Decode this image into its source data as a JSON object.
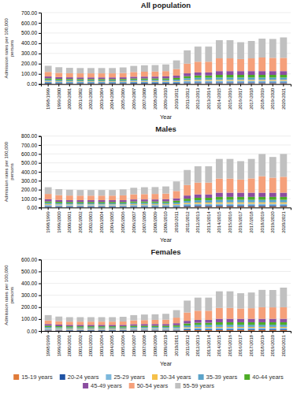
{
  "chart_data": [
    {
      "type": "bar",
      "stacked": true,
      "title": "All population",
      "xlabel": "Year",
      "ylabel": "Admission rates per 100,000\npersons",
      "grid": true,
      "legend": "bottom",
      "categories": [
        "1998/1999",
        "1999/2000",
        "2000/2001",
        "2001/2002",
        "2002/2003",
        "2003/2004",
        "2004/2005",
        "2005/2006",
        "2006/2007",
        "2007/2008",
        "2008/2009",
        "2009/2010",
        "2010/2011",
        "2011/2012",
        "2012/2013",
        "2013/2014",
        "2014/2015",
        "2015/2016",
        "2016/2017",
        "2017/2018",
        "2018/2019",
        "2019/2020",
        "2020/2021"
      ],
      "series": [
        {
          "name": "15-19 years",
          "color": "#E07B39",
          "values": [
            5,
            5,
            5,
            5,
            5,
            5,
            5,
            5,
            5,
            5,
            5,
            5,
            5,
            7,
            8,
            8,
            8,
            8,
            8,
            8,
            8,
            8,
            8
          ]
        },
        {
          "name": "20-24 years",
          "color": "#2053A4",
          "values": [
            8,
            7,
            7,
            7,
            7,
            7,
            7,
            7,
            8,
            8,
            8,
            8,
            8,
            10,
            10,
            10,
            10,
            10,
            10,
            10,
            10,
            10,
            10
          ]
        },
        {
          "name": "25-29 years",
          "color": "#7CB8DC",
          "values": [
            10,
            9,
            9,
            9,
            9,
            9,
            9,
            9,
            10,
            10,
            10,
            10,
            10,
            13,
            14,
            14,
            14,
            14,
            14,
            14,
            14,
            14,
            14
          ]
        },
        {
          "name": "30-34 years",
          "color": "#F5C04A",
          "values": [
            7,
            6,
            6,
            6,
            6,
            6,
            6,
            6,
            7,
            7,
            7,
            7,
            7,
            9,
            10,
            10,
            10,
            10,
            10,
            10,
            10,
            10,
            10
          ]
        },
        {
          "name": "35-39 years",
          "color": "#5BA3C9",
          "values": [
            12,
            11,
            11,
            10,
            10,
            10,
            10,
            11,
            12,
            12,
            12,
            12,
            14,
            18,
            20,
            20,
            22,
            22,
            22,
            22,
            22,
            22,
            22
          ]
        },
        {
          "name": "40-44 years",
          "color": "#4DAC26",
          "values": [
            14,
            13,
            12,
            12,
            12,
            12,
            12,
            12,
            13,
            13,
            13,
            14,
            16,
            20,
            22,
            22,
            26,
            26,
            26,
            26,
            26,
            26,
            26
          ]
        },
        {
          "name": "45-49 years",
          "color": "#8B4DA0",
          "values": [
            18,
            17,
            16,
            16,
            16,
            16,
            16,
            16,
            17,
            18,
            18,
            19,
            22,
            28,
            30,
            30,
            37,
            37,
            37,
            37,
            37,
            37,
            37
          ]
        },
        {
          "name": "50-54 years",
          "color": "#F5A07A",
          "values": [
            45,
            42,
            40,
            40,
            40,
            40,
            40,
            42,
            46,
            48,
            50,
            52,
            65,
            95,
            105,
            105,
            125,
            125,
            118,
            125,
            133,
            130,
            130
          ]
        },
        {
          "name": "55-59 years",
          "color": "#C0C0C0",
          "values": [
            60,
            55,
            53,
            52,
            52,
            52,
            52,
            55,
            60,
            63,
            63,
            65,
            85,
            130,
            148,
            148,
            178,
            178,
            165,
            170,
            185,
            185,
            200
          ]
        }
      ],
      "ylim": [
        0,
        700
      ],
      "yticks": [
        {
          "value": 0,
          "label": "0.00"
        },
        {
          "value": 100,
          "label": "100.00"
        },
        {
          "value": 200,
          "label": "200.00"
        },
        {
          "value": 300,
          "label": "300.00"
        },
        {
          "value": 400,
          "label": "400.00"
        },
        {
          "value": 500,
          "label": "500.00"
        },
        {
          "value": 600,
          "label": "600.00"
        },
        {
          "value": 700,
          "label": "700.00"
        }
      ]
    },
    {
      "type": "bar",
      "stacked": true,
      "title": "Males",
      "xlabel": "Year",
      "ylabel": "Admission rates per 100,000\npersons",
      "grid": true,
      "categories": [
        "1998/1999",
        "1999/2000",
        "2000/2001",
        "2001/2002",
        "2002/2003",
        "2003/2004",
        "2004/2005",
        "2005/2006",
        "2006/2007",
        "2007/2008",
        "2008/2009",
        "2009/2010",
        "2010/2011",
        "2011/2012",
        "2012/2013",
        "2013/2014",
        "2014/2015",
        "2015/2016",
        "2016/2017",
        "2017/2018",
        "2018/2019",
        "2019/2020",
        "2020/2021"
      ],
      "series": [
        {
          "name": "15-19 years",
          "color": "#E07B39",
          "values": [
            6,
            6,
            6,
            6,
            6,
            6,
            6,
            6,
            6,
            6,
            6,
            6,
            6,
            9,
            10,
            10,
            11,
            11,
            11,
            11,
            11,
            11,
            11
          ]
        },
        {
          "name": "20-24 years",
          "color": "#2053A4",
          "values": [
            10,
            9,
            9,
            9,
            9,
            9,
            9,
            9,
            10,
            10,
            10,
            10,
            10,
            13,
            14,
            14,
            14,
            14,
            14,
            14,
            14,
            14,
            14
          ]
        },
        {
          "name": "25-29 years",
          "color": "#7CB8DC",
          "values": [
            12,
            11,
            11,
            11,
            11,
            11,
            11,
            11,
            12,
            12,
            12,
            12,
            13,
            17,
            18,
            18,
            18,
            18,
            18,
            18,
            18,
            18,
            18
          ]
        },
        {
          "name": "30-34 years",
          "color": "#F5C04A",
          "values": [
            9,
            8,
            8,
            8,
            8,
            8,
            8,
            8,
            9,
            9,
            9,
            9,
            10,
            13,
            14,
            14,
            15,
            15,
            15,
            15,
            15,
            15,
            15
          ]
        },
        {
          "name": "35-39 years",
          "color": "#5BA3C9",
          "values": [
            15,
            14,
            13,
            13,
            13,
            13,
            13,
            13,
            15,
            15,
            15,
            15,
            17,
            22,
            25,
            25,
            28,
            28,
            28,
            28,
            28,
            28,
            28
          ]
        },
        {
          "name": "40-44 years",
          "color": "#4DAC26",
          "values": [
            17,
            16,
            15,
            15,
            15,
            15,
            15,
            15,
            16,
            16,
            16,
            17,
            20,
            25,
            28,
            28,
            33,
            33,
            33,
            33,
            33,
            33,
            33
          ]
        },
        {
          "name": "45-49 years",
          "color": "#8B4DA0",
          "values": [
            23,
            21,
            20,
            20,
            20,
            20,
            20,
            20,
            22,
            22,
            22,
            23,
            26,
            35,
            38,
            38,
            47,
            47,
            47,
            47,
            47,
            47,
            47
          ]
        },
        {
          "name": "50-54 years",
          "color": "#F5A07A",
          "values": [
            60,
            54,
            52,
            51,
            51,
            51,
            51,
            54,
            58,
            60,
            62,
            64,
            83,
            118,
            132,
            132,
            158,
            158,
            148,
            160,
            185,
            168,
            178
          ]
        },
        {
          "name": "55-59 years",
          "color": "#C0C0C0",
          "values": [
            75,
            67,
            65,
            63,
            63,
            63,
            63,
            67,
            73,
            77,
            77,
            80,
            107,
            168,
            183,
            183,
            220,
            220,
            205,
            218,
            248,
            232,
            256
          ]
        }
      ],
      "ylim": [
        0,
        800
      ],
      "yticks": [
        {
          "value": 0,
          "label": "0.00"
        },
        {
          "value": 100,
          "label": "100.00"
        },
        {
          "value": 200,
          "label": "200.00"
        },
        {
          "value": 300,
          "label": "300.00"
        },
        {
          "value": 400,
          "label": "400.00"
        },
        {
          "value": 500,
          "label": "500.00"
        },
        {
          "value": 600,
          "label": "600.00"
        },
        {
          "value": 700,
          "label": "700.00"
        },
        {
          "value": 800,
          "label": "800.00"
        }
      ]
    },
    {
      "type": "bar",
      "stacked": true,
      "title": "Females",
      "xlabel": "Year",
      "ylabel": "Admission rates per 100,000\npersons",
      "grid": true,
      "categories": [
        "1998/1999",
        "1999/2000",
        "2000/2001",
        "2001/2002",
        "2002/2003",
        "2003/2004",
        "2004/2005",
        "2005/2006",
        "2006/2007",
        "2007/2008",
        "2008/2009",
        "2009/2010",
        "2010/2011",
        "2011/2012",
        "2012/2013",
        "2013/2014",
        "2014/2015",
        "2015/2016",
        "2016/2017",
        "2017/2018",
        "2018/2019",
        "2019/2020",
        "2020/2021"
      ],
      "series": [
        {
          "name": "15-19 years",
          "color": "#E07B39",
          "values": [
            4,
            4,
            3,
            3,
            3,
            3,
            3,
            3,
            4,
            4,
            4,
            4,
            4,
            6,
            7,
            7,
            7,
            7,
            7,
            7,
            7,
            7,
            7
          ]
        },
        {
          "name": "20-24 years",
          "color": "#2053A4",
          "values": [
            6,
            5,
            5,
            5,
            5,
            5,
            5,
            5,
            6,
            6,
            6,
            6,
            6,
            8,
            8,
            8,
            8,
            8,
            8,
            8,
            8,
            8,
            8
          ]
        },
        {
          "name": "25-29 years",
          "color": "#7CB8DC",
          "values": [
            8,
            7,
            7,
            7,
            7,
            7,
            7,
            7,
            8,
            8,
            8,
            8,
            8,
            10,
            11,
            11,
            11,
            11,
            11,
            11,
            11,
            11,
            11
          ]
        },
        {
          "name": "30-34 years",
          "color": "#F5C04A",
          "values": [
            5,
            5,
            5,
            5,
            5,
            5,
            5,
            5,
            5,
            5,
            5,
            5,
            5,
            7,
            8,
            8,
            8,
            8,
            8,
            8,
            8,
            8,
            8
          ]
        },
        {
          "name": "35-39 years",
          "color": "#5BA3C9",
          "values": [
            10,
            9,
            9,
            9,
            9,
            9,
            9,
            9,
            10,
            10,
            10,
            10,
            12,
            15,
            17,
            17,
            18,
            18,
            18,
            18,
            18,
            18,
            18
          ]
        },
        {
          "name": "40-44 years",
          "color": "#4DAC26",
          "values": [
            11,
            10,
            10,
            10,
            10,
            10,
            10,
            10,
            11,
            11,
            11,
            11,
            13,
            17,
            18,
            18,
            21,
            21,
            21,
            21,
            21,
            21,
            21
          ]
        },
        {
          "name": "45-49 years",
          "color": "#8B4DA0",
          "values": [
            14,
            13,
            12,
            12,
            12,
            12,
            12,
            12,
            13,
            14,
            14,
            14,
            17,
            22,
            24,
            24,
            29,
            29,
            29,
            29,
            29,
            29,
            29
          ]
        },
        {
          "name": "50-54 years",
          "color": "#F5A07A",
          "values": [
            30,
            28,
            27,
            27,
            27,
            27,
            27,
            28,
            32,
            33,
            35,
            37,
            47,
            70,
            77,
            77,
            91,
            91,
            87,
            89,
            97,
            96,
            97
          ]
        },
        {
          "name": "55-59 years",
          "color": "#C0C0C0",
          "values": [
            45,
            40,
            38,
            38,
            38,
            38,
            38,
            40,
            44,
            47,
            47,
            49,
            63,
            100,
            110,
            110,
            140,
            140,
            128,
            132,
            146,
            146,
            165
          ]
        }
      ],
      "ylim": [
        0,
        600
      ],
      "yticks": [
        {
          "value": 0,
          "label": "0.00"
        },
        {
          "value": 100,
          "label": "100.00"
        },
        {
          "value": 200,
          "label": "200.00"
        },
        {
          "value": 300,
          "label": "300.00"
        },
        {
          "value": 400,
          "label": "400.00"
        },
        {
          "value": 500,
          "label": "500.00"
        },
        {
          "value": 600,
          "label": "600.00"
        }
      ]
    }
  ]
}
